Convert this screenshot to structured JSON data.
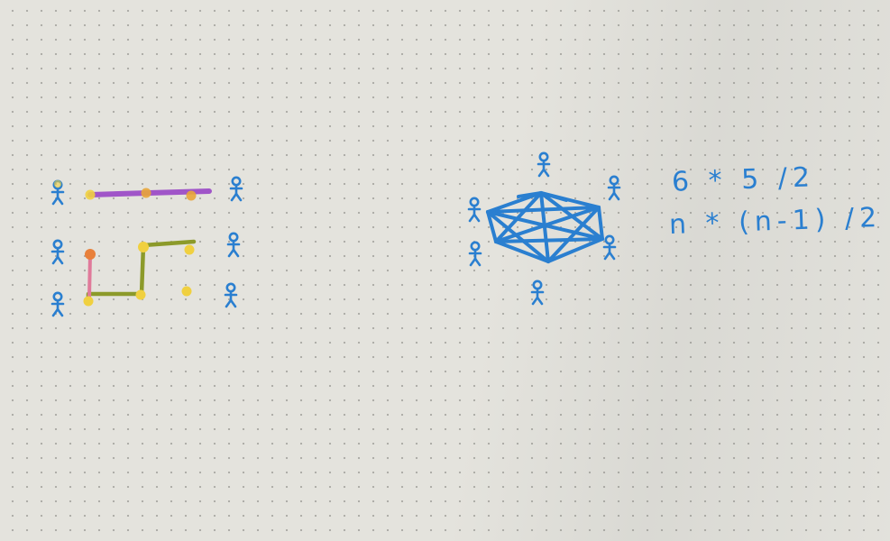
{
  "notes": {
    "formula_numeric": "6 * 5 /2",
    "formula_general": "n * (n-1) /2"
  },
  "colors": {
    "ink_blue": "#2a7fd0",
    "purple": "#a055c8",
    "olive": "#8c9a2a",
    "pink": "#e07a9a",
    "yellow_dot": "#f0d040",
    "orange_dot": "#e8803a"
  },
  "left_sketch": {
    "people_per_side": 3,
    "connections_drawn": [
      "purple",
      "olive",
      "pink"
    ]
  },
  "right_sketch": {
    "people": 6,
    "fully_connected": true
  }
}
